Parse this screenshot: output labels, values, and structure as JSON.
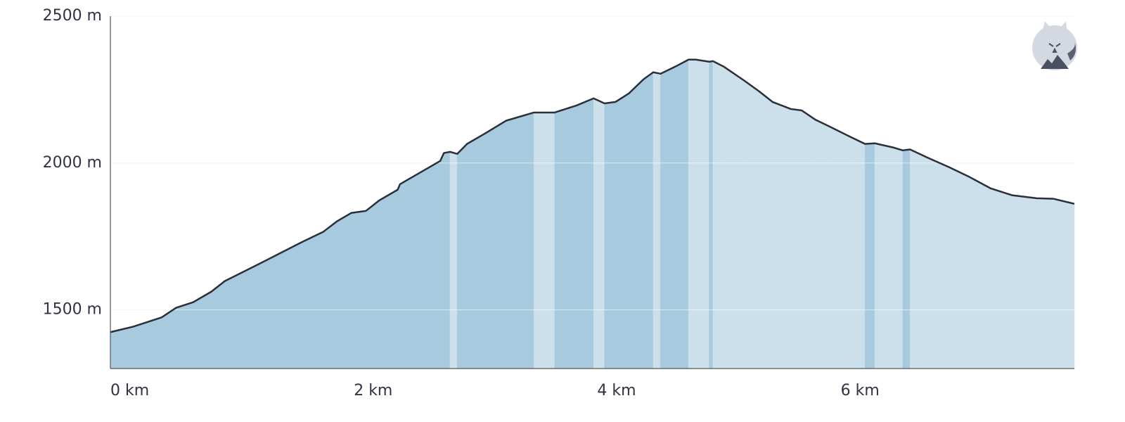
{
  "chart_data": {
    "type": "elevation",
    "x": [
      0,
      0.19,
      0.42,
      0.54,
      0.68,
      0.83,
      0.94,
      1.08,
      1.23,
      1.4,
      1.57,
      1.75,
      1.86,
      1.98,
      2.1,
      2.21,
      2.36,
      2.38,
      2.53,
      2.71,
      2.74,
      2.79,
      2.85,
      2.93,
      3.08,
      3.25,
      3.48,
      3.65,
      3.83,
      3.97,
      4.06,
      4.15,
      4.26,
      4.38,
      4.46,
      4.52,
      4.64,
      4.75,
      4.81,
      4.92,
      4.95,
      5.04,
      5.21,
      5.33,
      5.44,
      5.59,
      5.68,
      5.79,
      5.91,
      6.08,
      6.2,
      6.28,
      6.43,
      6.51,
      6.57,
      6.72,
      6.89,
      7.06,
      7.23,
      7.41,
      7.61,
      7.75,
      7.92
    ],
    "values": [
      1424,
      1443,
      1474,
      1507,
      1526,
      1562,
      1598,
      1627,
      1658,
      1694,
      1730,
      1766,
      1801,
      1830,
      1837,
      1873,
      1909,
      1928,
      1964,
      2007,
      2034,
      2038,
      2031,
      2065,
      2101,
      2144,
      2172,
      2172,
      2196,
      2220,
      2203,
      2208,
      2237,
      2285,
      2309,
      2304,
      2328,
      2352,
      2352,
      2345,
      2347,
      2328,
      2280,
      2244,
      2208,
      2184,
      2179,
      2148,
      2124,
      2089,
      2065,
      2067,
      2053,
      2043,
      2046,
      2017,
      1986,
      1952,
      1914,
      1890,
      1880,
      1878,
      1861
    ],
    "up_color": "#a8cade",
    "down_color": "#cce0eb",
    "line_color": "#2b2f3a",
    "xlim": [
      0,
      7.92
    ],
    "ylim": [
      1300,
      2500
    ],
    "xticks": [
      {
        "value": 0,
        "label": "0 km"
      },
      {
        "value": 2,
        "label": "2 km"
      },
      {
        "value": 4,
        "label": "4 km"
      },
      {
        "value": 6,
        "label": "6 km"
      }
    ],
    "yticks": [
      {
        "value": 1500,
        "label": "1500 m"
      },
      {
        "value": 2000,
        "label": "2000 m"
      },
      {
        "value": 2500,
        "label": "2500 m"
      }
    ],
    "grid": true
  }
}
